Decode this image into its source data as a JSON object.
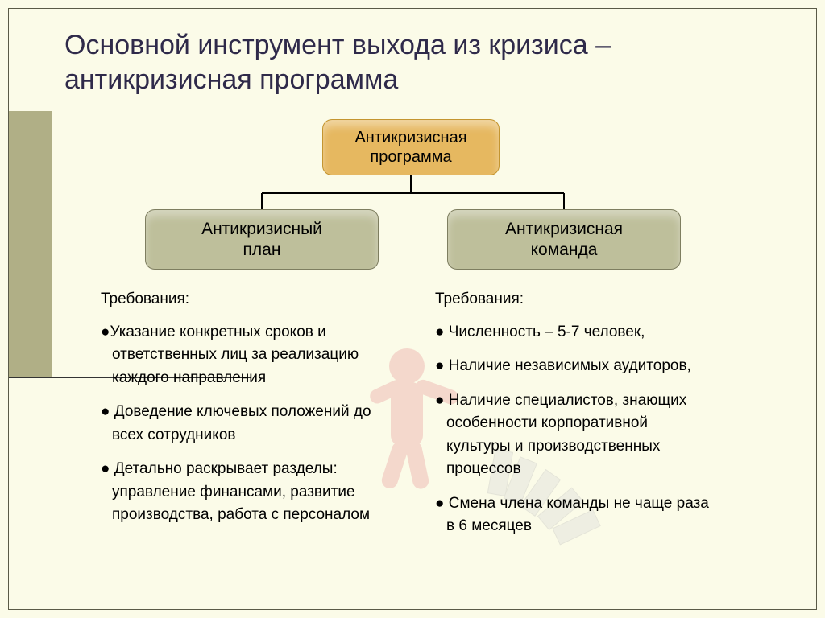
{
  "title": "Основной инструмент выхода из кризиса – антикризисная программа",
  "diagram": {
    "type": "tree",
    "root": {
      "label": "Антикризисная\nпрограмма",
      "bg_color": "#e6b860",
      "border_color": "#c49530",
      "border_radius": 12,
      "fontsize": 20
    },
    "children": [
      {
        "label": "Антикризисный\nплан",
        "bg_color": "#bebf9b",
        "border_color": "#7e7e60",
        "fontsize": 21
      },
      {
        "label": "Антикризисная\nкоманда",
        "bg_color": "#bebf9b",
        "border_color": "#7e7e60",
        "fontsize": 21
      }
    ],
    "connector_color": "#000000",
    "connector_width": 2
  },
  "requirements": {
    "left": {
      "title": "Требования:",
      "items": [
        "Указание конкретных сроков и ответственных лиц за реализацию каждого направления",
        "Доведение ключевых положений до всех сотрудников",
        "Детально раскрывает разделы: управление финансами, развитие производства, работа с персоналом"
      ]
    },
    "right": {
      "title": "Требования:",
      "items": [
        "Численность – 5-7 человек,",
        "Наличие независимых аудиторов,",
        "Наличие специалистов, знающих особенности корпоративной культуры и производственных процессов",
        "Смена члена команды не чаще раза в 6 месяцев"
      ]
    }
  },
  "layout": {
    "page_bg": "#fbfbe8",
    "accent_bg": "#b0af86",
    "title_color": "#2f2a4a",
    "title_fontsize": 34,
    "body_fontsize": 19,
    "frame_border_color": "#5a5a47"
  },
  "bg_figure": {
    "body_color": "#e89a9a",
    "dominoes_color": "#d0d0d0"
  }
}
